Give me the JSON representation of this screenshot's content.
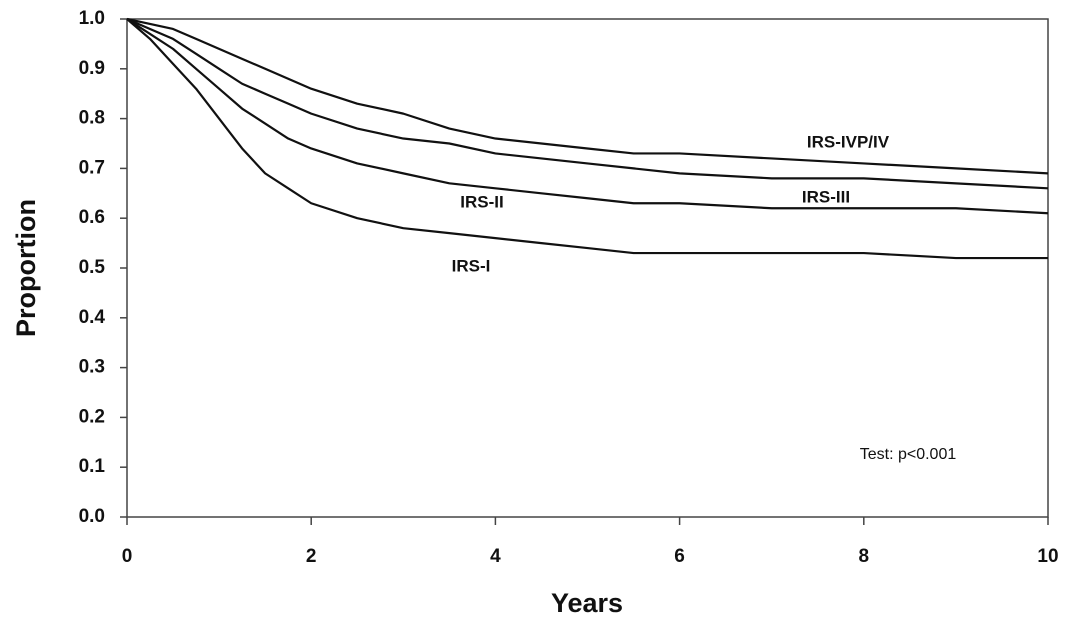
{
  "chart_data": {
    "type": "line",
    "xlabel": "Years",
    "ylabel": "Proportion",
    "annotation": "Test: p<0.001",
    "x": [
      0,
      0.25,
      0.5,
      0.75,
      1,
      1.25,
      1.5,
      1.75,
      2,
      2.5,
      3,
      3.5,
      4,
      4.5,
      5,
      5.5,
      6,
      7,
      8,
      9,
      10
    ],
    "series": [
      {
        "name": "IRS-IVP/IV",
        "color": "#111111",
        "values": [
          1.0,
          0.99,
          0.98,
          0.96,
          0.94,
          0.92,
          0.9,
          0.88,
          0.86,
          0.83,
          0.81,
          0.78,
          0.76,
          0.75,
          0.74,
          0.73,
          0.73,
          0.72,
          0.71,
          0.7,
          0.69
        ]
      },
      {
        "name": "IRS-III",
        "color": "#111111",
        "values": [
          1.0,
          0.98,
          0.96,
          0.93,
          0.9,
          0.87,
          0.85,
          0.83,
          0.81,
          0.78,
          0.76,
          0.75,
          0.73,
          0.72,
          0.71,
          0.7,
          0.69,
          0.68,
          0.68,
          0.67,
          0.66
        ]
      },
      {
        "name": "IRS-II",
        "color": "#111111",
        "values": [
          1.0,
          0.97,
          0.94,
          0.9,
          0.86,
          0.82,
          0.79,
          0.76,
          0.74,
          0.71,
          0.69,
          0.67,
          0.66,
          0.65,
          0.64,
          0.63,
          0.63,
          0.62,
          0.62,
          0.62,
          0.61
        ]
      },
      {
        "name": "IRS-I",
        "color": "#111111",
        "values": [
          1.0,
          0.96,
          0.91,
          0.86,
          0.8,
          0.74,
          0.69,
          0.66,
          0.63,
          0.6,
          0.58,
          0.57,
          0.56,
          0.55,
          0.54,
          0.53,
          0.53,
          0.53,
          0.53,
          0.52,
          0.52
        ]
      }
    ],
    "xlim": [
      0,
      10
    ],
    "xticks": [
      0,
      2,
      4,
      6,
      8,
      10
    ],
    "ylim": [
      0,
      1
    ],
    "yticks": [
      {
        "value": 0,
        "label": "0.0"
      },
      0.1,
      0.2,
      0.3,
      0.4,
      0.5,
      0.6,
      0.7,
      0.8,
      0.9,
      {
        "value": 1,
        "label": "1.0"
      }
    ]
  }
}
